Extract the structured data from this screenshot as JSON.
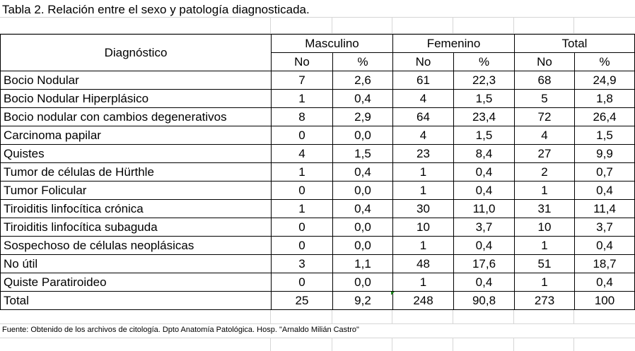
{
  "title": "Tabla 2. Relación entre el sexo y patología diagnosticada.",
  "header": {
    "diagnostico": "Diagnóstico",
    "groups": [
      "Masculino",
      "Femenino",
      "Total"
    ],
    "sub": [
      "No",
      "%",
      "No",
      "%",
      "No",
      "%"
    ]
  },
  "rows": [
    {
      "label": "Bocio Nodular",
      "values": [
        "7",
        "2,6",
        "61",
        "22,3",
        "68",
        "24,9"
      ]
    },
    {
      "label": "Bocio Nodular Hiperplásico",
      "values": [
        "1",
        "0,4",
        "4",
        "1,5",
        "5",
        "1,8"
      ]
    },
    {
      "label": "Bocio nodular con cambios degenerativos",
      "values": [
        "8",
        "2,9",
        "64",
        "23,4",
        "72",
        "26,4"
      ]
    },
    {
      "label": "Carcinoma papilar",
      "values": [
        "0",
        "0,0",
        "4",
        "1,5",
        "4",
        "1,5"
      ]
    },
    {
      "label": "Quistes",
      "values": [
        "4",
        "1,5",
        "23",
        "8,4",
        "27",
        "9,9"
      ]
    },
    {
      "label": "Tumor de células de Hürthle",
      "values": [
        "1",
        "0,4",
        "1",
        "0,4",
        "2",
        "0,7"
      ]
    },
    {
      "label": "Tumor Folicular",
      "values": [
        "0",
        "0,0",
        "1",
        "0,4",
        "1",
        "0,4"
      ]
    },
    {
      "label": "Tiroiditis linfocítica crónica",
      "values": [
        "1",
        "0,4",
        "30",
        "11,0",
        "31",
        "11,4"
      ]
    },
    {
      "label": "Tiroiditis linfocítica subaguda",
      "values": [
        "0",
        "0,0",
        "10",
        "3,7",
        "10",
        "3,7"
      ]
    },
    {
      "label": "Sospechoso de células neoplásicas",
      "values": [
        "0",
        "0,0",
        "1",
        "0,4",
        "1",
        "0,4"
      ]
    },
    {
      "label": "No útil",
      "values": [
        "3",
        "1,1",
        "48",
        "17,6",
        "51",
        "18,7"
      ]
    },
    {
      "label": "Quiste Paratiroideo",
      "values": [
        "0",
        "0,0",
        "1",
        "0,4",
        "1",
        "0,4"
      ]
    }
  ],
  "total": {
    "label": "Total",
    "values": [
      "25",
      "9,2",
      "248",
      "90,8",
      "273",
      "100"
    ]
  },
  "footnote": "Fuente: Obtenido de los archivos de citología. Dpto Anatomía Patológica. Hosp. \"Arnaldo Milián Castro\""
}
